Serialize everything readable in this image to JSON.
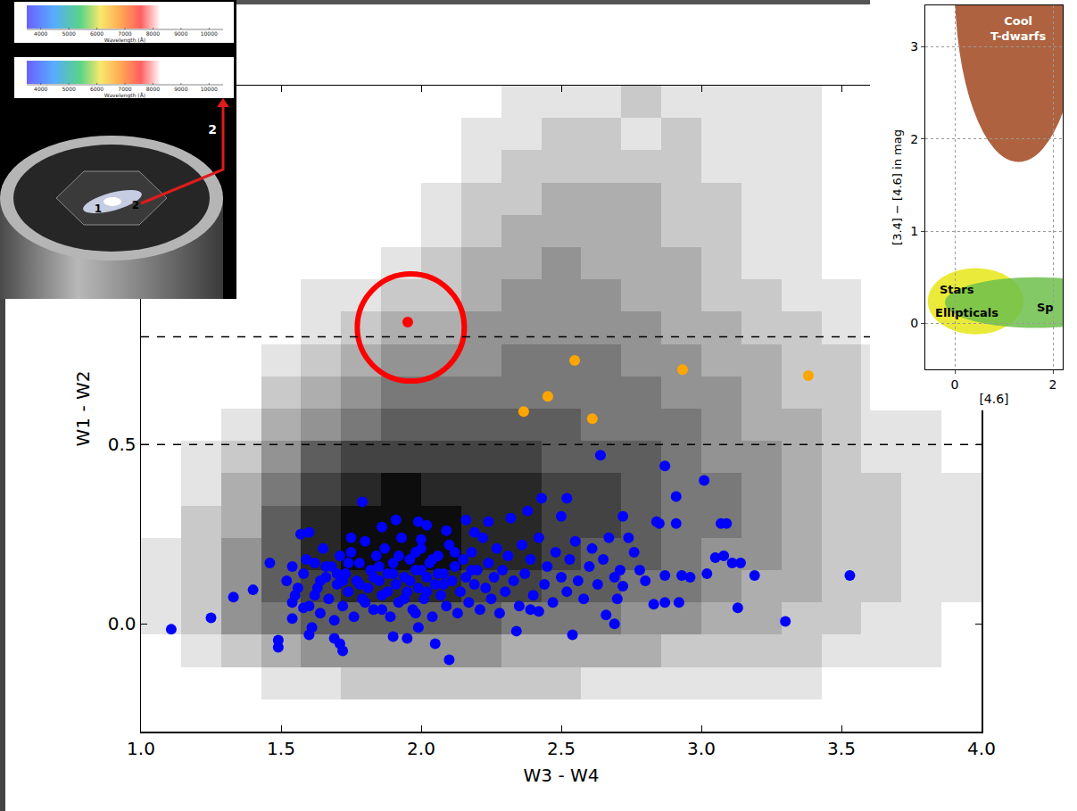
{
  "chart_data": [
    {
      "type": "scatter",
      "x_label": "W3 - W4",
      "y_label": "W1 - W2",
      "xlim": [
        1.0,
        4.0
      ],
      "ylim": [
        -0.3,
        1.5
      ],
      "xticks": [
        {
          "value": 1.0,
          "label": "1.0"
        },
        {
          "value": 1.5,
          "label": "1.5"
        },
        {
          "value": 2.0,
          "label": "2.0"
        },
        {
          "value": 2.5,
          "label": "2.5"
        },
        {
          "value": 3.0,
          "label": "3.0"
        },
        {
          "value": 3.5,
          "label": "3.5"
        },
        {
          "value": 4.0,
          "label": "4.0"
        }
      ],
      "yticks": [
        {
          "value": 0.0,
          "label": "0.0"
        },
        {
          "value": 0.5,
          "label": "0.5"
        }
      ],
      "grid": false,
      "reference_lines": {
        "y": [
          0.5,
          0.8
        ],
        "line_style": "dashed",
        "color": "#000000"
      },
      "density": {
        "color": "#000000",
        "x_bins": [
          1.0,
          1.143,
          1.286,
          1.429,
          1.571,
          1.714,
          1.857,
          2.0,
          2.143,
          2.286,
          2.429,
          2.571,
          2.714,
          2.857,
          3.0,
          3.143,
          3.286,
          3.429,
          3.571,
          3.714,
          3.857,
          4.0
        ],
        "y_bins": [
          -0.3,
          -0.21,
          -0.12,
          -0.03,
          0.06,
          0.15,
          0.24,
          0.33,
          0.42,
          0.51,
          0.6,
          0.69,
          0.78,
          0.87,
          0.96,
          1.05,
          1.14,
          1.23,
          1.32,
          1.41,
          1.5
        ],
        "counts": [
          [
            null,
            null,
            null,
            null,
            null,
            null,
            null,
            null,
            null,
            null,
            null,
            null,
            null,
            null,
            null,
            null,
            null,
            null,
            null,
            null,
            null
          ],
          [
            null,
            null,
            null,
            1,
            1,
            2,
            2,
            2,
            2,
            2,
            2,
            1,
            1,
            1,
            1,
            1,
            1,
            null,
            null,
            null,
            null
          ],
          [
            null,
            1,
            2,
            3,
            4,
            4,
            4,
            4,
            4,
            3,
            3,
            3,
            3,
            2,
            2,
            2,
            2,
            1,
            1,
            1,
            null
          ],
          [
            1,
            2,
            4,
            5,
            6,
            6,
            6,
            6,
            6,
            5,
            5,
            5,
            4,
            4,
            3,
            3,
            2,
            2,
            1,
            1,
            null
          ],
          [
            1,
            2,
            4,
            6,
            7,
            8,
            8,
            8,
            7,
            7,
            6,
            6,
            5,
            5,
            4,
            3,
            3,
            2,
            2,
            1,
            1
          ],
          [
            1,
            2,
            4,
            6,
            8,
            9,
            9,
            9,
            8,
            8,
            7,
            6,
            6,
            5,
            4,
            4,
            3,
            2,
            2,
            1,
            1
          ],
          [
            null,
            2,
            3,
            6,
            8,
            9,
            9,
            9,
            8,
            8,
            7,
            7,
            6,
            5,
            5,
            4,
            3,
            2,
            2,
            1,
            1
          ],
          [
            null,
            1,
            3,
            5,
            7,
            8,
            9,
            8,
            8,
            8,
            7,
            7,
            6,
            5,
            5,
            4,
            3,
            2,
            2,
            1,
            1
          ],
          [
            null,
            1,
            2,
            4,
            6,
            7,
            7,
            7,
            7,
            7,
            6,
            6,
            6,
            5,
            4,
            4,
            3,
            2,
            1,
            1,
            null
          ],
          [
            null,
            null,
            1,
            3,
            4,
            5,
            6,
            6,
            6,
            6,
            6,
            5,
            5,
            5,
            4,
            3,
            3,
            2,
            1,
            1,
            null
          ],
          [
            null,
            null,
            null,
            2,
            3,
            4,
            5,
            5,
            5,
            5,
            5,
            5,
            5,
            4,
            4,
            3,
            2,
            2,
            1,
            null,
            null
          ],
          [
            null,
            null,
            null,
            1,
            2,
            3,
            4,
            4,
            4,
            5,
            5,
            5,
            4,
            4,
            3,
            3,
            2,
            2,
            1,
            null,
            null
          ],
          [
            null,
            null,
            null,
            null,
            1,
            2,
            3,
            3,
            4,
            4,
            4,
            4,
            4,
            3,
            3,
            2,
            2,
            1,
            null,
            null,
            null
          ],
          [
            null,
            null,
            null,
            null,
            1,
            1,
            2,
            2,
            3,
            4,
            4,
            4,
            3,
            3,
            2,
            2,
            1,
            1,
            null,
            null,
            null
          ],
          [
            null,
            null,
            null,
            null,
            null,
            null,
            1,
            2,
            3,
            3,
            4,
            3,
            3,
            3,
            2,
            1,
            1,
            null,
            null,
            null,
            null
          ],
          [
            null,
            null,
            null,
            null,
            null,
            null,
            null,
            1,
            2,
            3,
            3,
            3,
            3,
            2,
            2,
            1,
            1,
            null,
            null,
            null,
            null
          ],
          [
            null,
            null,
            null,
            null,
            null,
            null,
            null,
            1,
            2,
            2,
            3,
            3,
            3,
            2,
            2,
            1,
            1,
            null,
            null,
            null,
            null
          ],
          [
            null,
            null,
            null,
            null,
            null,
            null,
            null,
            null,
            1,
            2,
            2,
            2,
            2,
            2,
            1,
            1,
            1,
            null,
            null,
            null,
            null
          ],
          [
            null,
            null,
            null,
            null,
            null,
            null,
            null,
            null,
            1,
            1,
            2,
            2,
            1,
            2,
            1,
            1,
            1,
            null,
            null,
            null,
            null
          ],
          [
            null,
            null,
            null,
            null,
            null,
            null,
            null,
            null,
            null,
            1,
            1,
            1,
            2,
            1,
            1,
            1,
            1,
            null,
            null,
            null,
            null
          ]
        ]
      },
      "series": [
        {
          "color": "#0000ff",
          "marker": "circle",
          "x": [
            1.108,
            1.25,
            1.33,
            1.4,
            1.46,
            1.49,
            1.49,
            1.54,
            1.54,
            1.54,
            1.57,
            1.6,
            1.56,
            1.6,
            1.61,
            1.59,
            1.58,
            1.69,
            1.72,
            1.71,
            1.79,
            1.75,
            1.86,
            1.91,
            1.99,
            2.0,
            2.02,
            2.09,
            2.16,
            2.19,
            2.24,
            2.32,
            2.38,
            2.43,
            2.52,
            2.5,
            2.64,
            2.87,
            2.91,
            3.01,
            3.07,
            2.72,
            2.84,
            2.91,
            3.53,
            3.3,
            3.13,
            3.05,
            3.11,
            3.14,
            3.08,
            3.19,
            2.93,
            2.87,
            2.87,
            2.83,
            2.78,
            2.71,
            2.72,
            2.69,
            2.66,
            2.54,
            2.34,
            2.42,
            2.39,
            2.1,
            2.05,
            1.99,
            1.95,
            1.9,
            1.52,
            1.55,
            1.58,
            1.6,
            1.62,
            1.63,
            1.64,
            1.65,
            1.66,
            1.67,
            1.68,
            1.69,
            1.7,
            1.71,
            1.72,
            1.73,
            1.74,
            1.75,
            1.76,
            1.77,
            1.78,
            1.79,
            1.8,
            1.81,
            1.82,
            1.83,
            1.84,
            1.85,
            1.86,
            1.87,
            1.88,
            1.89,
            1.9,
            1.91,
            1.92,
            1.93,
            1.94,
            1.95,
            1.96,
            1.97,
            1.98,
            1.99,
            2.0,
            2.01,
            2.02,
            2.03,
            2.04,
            2.05,
            2.06,
            2.07,
            2.08,
            2.09,
            2.1,
            2.11,
            2.12,
            2.13,
            2.14,
            2.15,
            2.16,
            2.17,
            2.18,
            2.19,
            2.2,
            2.21,
            2.22,
            2.23,
            2.24,
            2.25,
            2.26,
            2.27,
            2.28,
            2.29,
            2.3,
            2.31,
            2.33,
            2.35,
            2.36,
            2.37,
            2.39,
            2.4,
            2.42,
            2.44,
            2.45,
            2.47,
            2.48,
            2.5,
            2.52,
            2.53,
            2.55,
            2.56,
            2.58,
            2.6,
            2.61,
            2.63,
            2.65,
            2.67,
            2.69,
            2.7,
            2.74,
            2.76,
            2.8,
            2.85,
            2.92,
            2.96,
            3.02,
            3.09,
            1.78,
            1.83,
            1.85,
            1.88,
            1.9,
            1.92,
            1.94,
            1.96,
            1.98,
            2.0,
            2.02,
            2.04,
            2.06,
            2.08,
            1.8,
            1.86,
            1.72,
            1.66,
            1.62,
            1.98,
            2.12,
            2.18,
            1.74,
            1.7,
            1.64
          ],
          "y": [
            -0.015,
            0.017,
            0.075,
            0.095,
            0.17,
            -0.045,
            -0.065,
            0.06,
            0.015,
            0.16,
            0.25,
            0.255,
            0.1,
            -0.03,
            -0.01,
            0.18,
            0.045,
            -0.04,
            -0.075,
            -0.055,
            0.34,
            0.24,
            0.27,
            0.29,
            0.285,
            0.235,
            0.275,
            0.26,
            0.29,
            0.255,
            0.285,
            0.295,
            0.315,
            0.35,
            0.35,
            0.3,
            0.47,
            0.44,
            0.355,
            0.4,
            0.28,
            0.3,
            0.285,
            0.28,
            0.135,
            0.007,
            0.045,
            0.185,
            0.17,
            0.17,
            0.19,
            0.135,
            0.135,
            0.135,
            0.06,
            0.055,
            0.15,
            0.15,
            0.105,
            0.0,
            0.025,
            -0.03,
            -0.02,
            0.035,
            0.04,
            -0.1,
            -0.055,
            -0.01,
            -0.04,
            -0.035,
            0.12,
            0.08,
            0.14,
            0.05,
            0.17,
            0.1,
            0.03,
            0.21,
            0.13,
            0.07,
            0.16,
            0.01,
            0.11,
            0.19,
            0.05,
            0.14,
            0.09,
            0.2,
            0.02,
            0.12,
            0.17,
            0.07,
            0.23,
            0.1,
            0.15,
            0.04,
            0.19,
            0.12,
            0.08,
            0.21,
            0.14,
            0.02,
            0.17,
            0.11,
            0.06,
            0.24,
            0.13,
            0.09,
            0.18,
            0.04,
            0.15,
            0.1,
            0.21,
            0.07,
            0.13,
            0.17,
            0.02,
            0.11,
            0.19,
            0.08,
            0.14,
            0.05,
            0.22,
            0.12,
            0.16,
            0.03,
            0.09,
            0.18,
            0.13,
            0.06,
            0.2,
            0.11,
            0.15,
            0.04,
            0.24,
            0.1,
            0.17,
            0.07,
            0.13,
            0.21,
            0.03,
            0.15,
            0.09,
            0.19,
            0.12,
            0.05,
            0.22,
            0.14,
            0.18,
            0.08,
            0.24,
            0.11,
            0.16,
            0.06,
            0.2,
            0.13,
            0.09,
            0.18,
            0.23,
            0.12,
            0.07,
            0.16,
            0.21,
            0.11,
            0.18,
            0.24,
            0.13,
            0.07,
            0.24,
            0.2,
            0.12,
            0.28,
            0.06,
            0.13,
            0.14,
            0.28,
            0.11,
            0.13,
            0.16,
            0.09,
            0.14,
            0.19,
            0.07,
            0.12,
            0.2,
            0.15,
            0.09,
            0.18,
            0.14,
            0.11,
            0.06,
            0.04,
            0.12,
            0.16,
            0.08,
            0.03,
            0.2,
            0.15,
            0.17,
            0.14,
            0.12
          ]
        },
        {
          "color": "#ffa500",
          "marker": "circle",
          "x": [
            2.366,
            2.452,
            2.548,
            2.611,
            2.933,
            3.382
          ],
          "y": [
            0.592,
            0.634,
            0.734,
            0.572,
            0.709,
            0.692
          ]
        },
        {
          "color": "#ff0000",
          "marker": "circle",
          "x": [
            1.952
          ],
          "y": [
            0.841
          ]
        },
        {
          "color": "#ff0000",
          "marker": "circle-open",
          "x": [
            1.963
          ],
          "y": [
            0.826
          ]
        }
      ]
    },
    {
      "type": "region",
      "x_label": "[4.6]",
      "y_label": "[3.4] − [4.6] in mag",
      "xlim": [
        -0.6,
        2.2
      ],
      "ylim": [
        -0.5,
        3.45
      ],
      "xticks": [
        0,
        2
      ],
      "yticks": [
        0,
        1,
        2,
        3
      ],
      "grid": true,
      "regions": [
        {
          "color": "#a0461e",
          "x0": 0.0,
          "x1": 2.6,
          "y0": 1.75,
          "y1": 5.6
        },
        {
          "color": "#e6e617",
          "x0": -0.55,
          "x1": 1.4,
          "y0": -0.12,
          "y1": 0.6
        },
        {
          "color": "#6dbf4b",
          "x0": -0.2,
          "x1": 3.5,
          "y0": -0.05,
          "y1": 0.5
        }
      ],
      "labels": [
        {
          "text": "Cool T-dwarfs",
          "x": 1.3,
          "y": 3.2,
          "color": "#ffffff"
        },
        {
          "text": "Stars",
          "x": 0.05,
          "y": 0.37,
          "color": "#000000"
        },
        {
          "text": "Ellipticals",
          "x": 0.25,
          "y": 0.11,
          "color": "#000000"
        },
        {
          "text": "Sp",
          "x": 1.85,
          "y": 0.17,
          "color": "#000000"
        }
      ]
    }
  ],
  "illustration": {
    "galaxy_labels": [
      "1",
      "2"
    ],
    "arrow_label": "2",
    "spectra": {
      "x_label": "Wavelength (Å)",
      "xlim": [
        3500,
        10500
      ],
      "xticks": [
        4000,
        5000,
        6000,
        7000,
        8000,
        9000,
        10000
      ]
    }
  }
}
